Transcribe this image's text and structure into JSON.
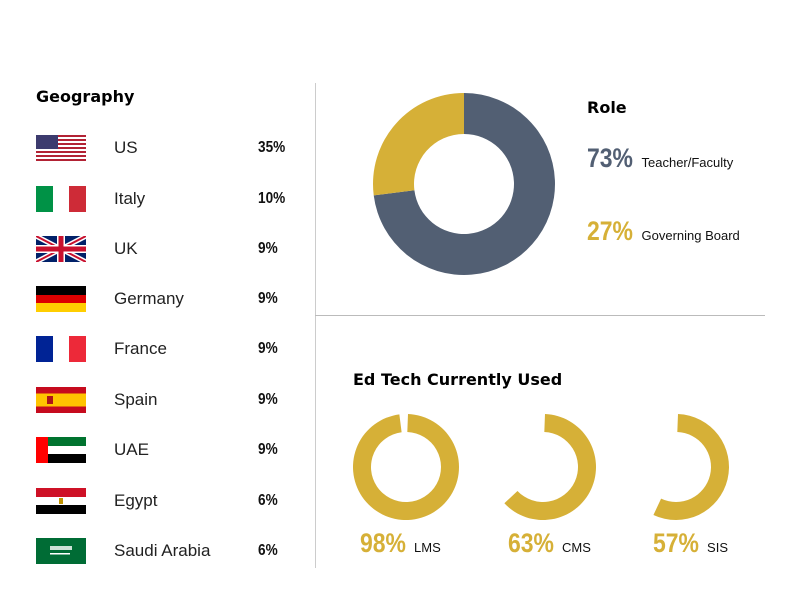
{
  "geography": {
    "title": "Geography",
    "rows": [
      {
        "country": "US",
        "pct": "35%",
        "flag": "us-flag"
      },
      {
        "country": "Italy",
        "pct": "10%",
        "flag": "italy-flag"
      },
      {
        "country": "UK",
        "pct": "9%",
        "flag": "uk-flag"
      },
      {
        "country": "Germany",
        "pct": "9%",
        "flag": "germany-flag"
      },
      {
        "country": "France",
        "pct": "9%",
        "flag": "france-flag"
      },
      {
        "country": "Spain",
        "pct": "9%",
        "flag": "spain-flag"
      },
      {
        "country": "UAE",
        "pct": "9%",
        "flag": "uae-flag"
      },
      {
        "country": "Egypt",
        "pct": "6%",
        "flag": "egypt-flag"
      },
      {
        "country": "Saudi Arabia",
        "pct": "6%",
        "flag": "saudi-arabia-flag"
      }
    ]
  },
  "chart_data": [
    {
      "type": "pie",
      "title": "Role",
      "categories": [
        "Teacher/Faculty",
        "Governing Board"
      ],
      "values": [
        73,
        27
      ],
      "labels": [
        "73%",
        "27%"
      ],
      "colors": [
        "#525f73",
        "#d6b037"
      ],
      "donut": true
    },
    {
      "type": "pie",
      "title": "Ed Tech Currently Used",
      "categories": [
        "LMS",
        "CMS",
        "SIS"
      ],
      "values": [
        98,
        63,
        57
      ],
      "labels": [
        "98%",
        "63%",
        "57%"
      ],
      "colors": [
        "#d6b037"
      ],
      "donut": true
    }
  ]
}
